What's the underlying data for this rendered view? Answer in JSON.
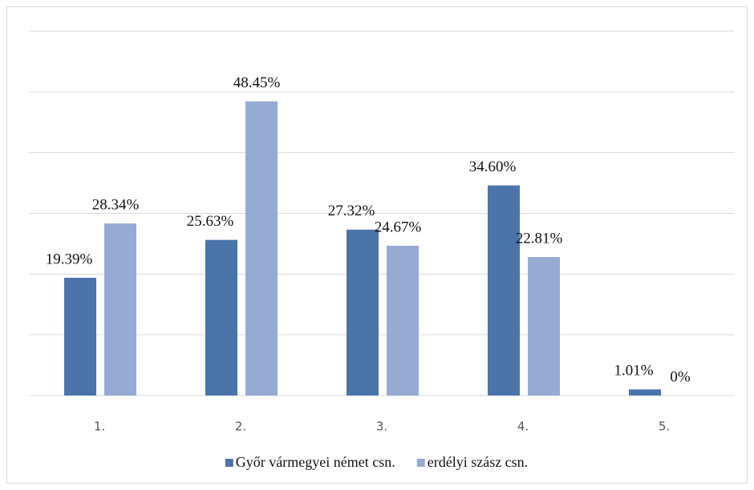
{
  "chart_data": {
    "type": "bar",
    "categories": [
      "1.",
      "2.",
      "3.",
      "4.",
      "5."
    ],
    "series": [
      {
        "name": "Győr vármegyei német csn.",
        "color": "#4a74aa",
        "values": [
          19.39,
          25.63,
          27.32,
          34.6,
          1.01
        ],
        "value_labels": [
          "19.39%",
          "25.63%",
          "27.32%",
          "34.60%",
          "1.01%"
        ]
      },
      {
        "name": "erdélyi szász csn.",
        "color": "#95abd3",
        "values": [
          28.34,
          48.45,
          24.67,
          22.81,
          0
        ],
        "value_labels": [
          "28.34%",
          "48.45%",
          "24.67%",
          "22.81%",
          "0%"
        ]
      }
    ],
    "ylim": [
      0,
      60
    ],
    "yticks": [
      0,
      10,
      20,
      30,
      40,
      50,
      60
    ],
    "grid": true,
    "legend": "bottom"
  }
}
